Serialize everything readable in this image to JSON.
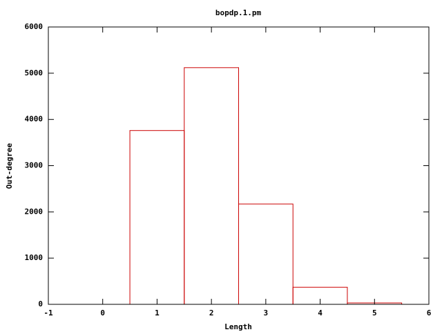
{
  "chart_data": {
    "type": "histogram",
    "title": "bopdp.1.pm",
    "xlabel": "Length",
    "ylabel": "Out-degree",
    "bins": [
      0.5,
      1.5,
      2.5,
      3.5,
      4.5,
      5.5
    ],
    "values": [
      3760,
      5120,
      2170,
      370,
      30
    ],
    "color": "#cc0000",
    "xlim": [
      -1,
      6
    ],
    "xticks": [
      -1,
      0,
      1,
      2,
      3,
      4,
      5,
      6
    ],
    "ylim": [
      0,
      6000
    ],
    "yticks": [
      0,
      1000,
      2000,
      3000,
      4000,
      5000,
      6000
    ],
    "grid": false
  }
}
